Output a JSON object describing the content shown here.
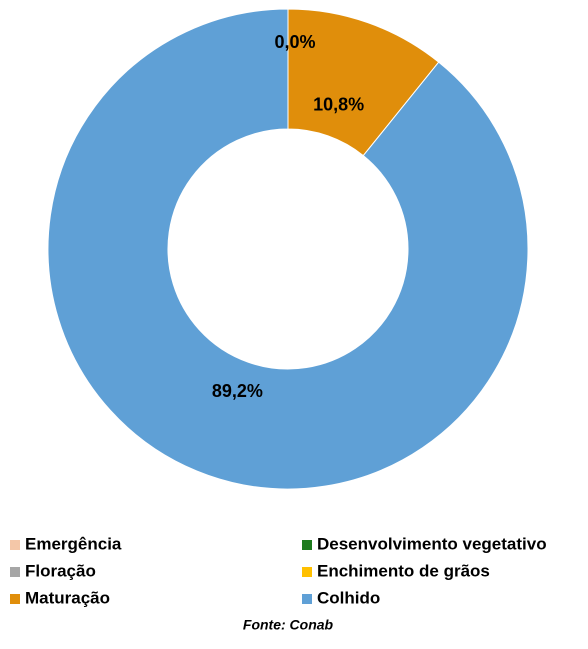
{
  "chart_data": {
    "type": "donut",
    "categories": [
      "Emergência",
      "Desenvolvimento vegetativo",
      "Floração",
      "Enchimento de grãos",
      "Maturação",
      "Colhido"
    ],
    "values": [
      0,
      0,
      0,
      0,
      10.8,
      89.2
    ],
    "value_labels": [
      null,
      null,
      null,
      "0,0%",
      "10,8%",
      "89,2%"
    ],
    "colors": [
      "#f4c7a8",
      "#1e7b1e",
      "#a6a6a6",
      "#ffc000",
      "#e08e0b",
      "#5fa0d6"
    ],
    "source": "Fonte: Conab"
  }
}
